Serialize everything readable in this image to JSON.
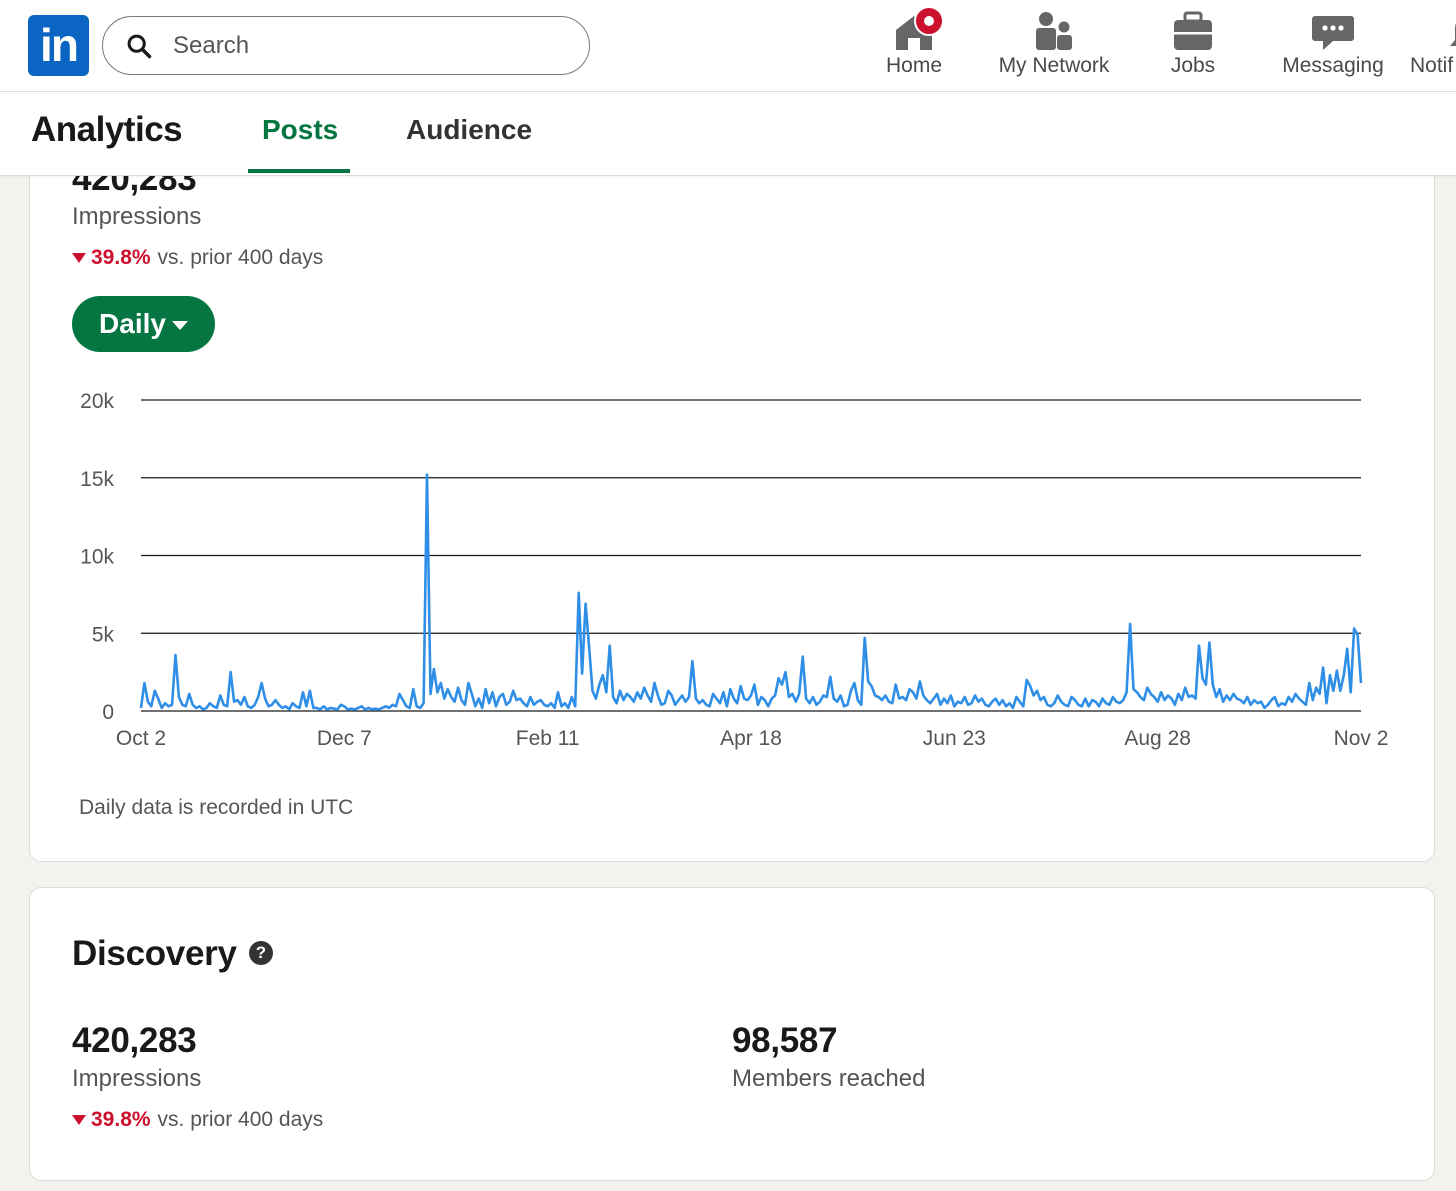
{
  "nav": {
    "search_placeholder": "Search",
    "items": [
      {
        "label": "Home",
        "icon": "home-icon"
      },
      {
        "label": "My Network",
        "icon": "network-icon"
      },
      {
        "label": "Jobs",
        "icon": "briefcase-icon"
      },
      {
        "label": "Messaging",
        "icon": "messaging-icon"
      },
      {
        "label": "Notif",
        "icon": "bell-icon"
      }
    ]
  },
  "subnav": {
    "title": "Analytics",
    "tabs": [
      {
        "label": "Posts",
        "active": true
      },
      {
        "label": "Audience",
        "active": false
      }
    ]
  },
  "impressions_card": {
    "value": "420,283",
    "label": "Impressions",
    "delta_pct": "39.8%",
    "delta_text": "vs. prior 400 days",
    "period_button": "Daily",
    "footnote": "Daily data is recorded in UTC"
  },
  "discovery": {
    "title": "Discovery",
    "help_icon": "question-icon",
    "impressions_value": "420,283",
    "impressions_label": "Impressions",
    "delta_pct": "39.8%",
    "delta_text": "vs. prior 400 days",
    "members_value": "98,587",
    "members_label": "Members reached"
  },
  "colors": {
    "brand_blue": "#0a66c2",
    "green": "#057642",
    "line": "#2f8ee6",
    "negative": "#cb112d"
  },
  "chart_data": {
    "type": "line",
    "x_tick_labels": [
      "Oct 2",
      "Dec 7",
      "Feb 11",
      "Apr 18",
      "Jun 23",
      "Aug 28",
      "Nov 2"
    ],
    "y_tick_labels": [
      "0",
      "5k",
      "10k",
      "15k",
      "20k"
    ],
    "ylim": [
      0,
      20000
    ],
    "grid": true,
    "series": [
      {
        "values": [
          200,
          1800,
          600,
          300,
          1300,
          800,
          200,
          500,
          300,
          400,
          3600,
          900,
          400,
          300,
          1100,
          400,
          200,
          300,
          100,
          200,
          500,
          300,
          200,
          1000,
          400,
          300,
          2500,
          600,
          700,
          400,
          900,
          300,
          200,
          400,
          900,
          1800,
          800,
          300,
          400,
          700,
          400,
          200,
          300,
          100,
          500,
          300,
          200,
          1200,
          300,
          1300,
          200,
          200,
          100,
          300,
          100,
          200,
          150,
          100,
          400,
          300,
          100,
          150,
          100,
          200,
          300,
          100,
          200,
          100,
          150,
          100,
          200,
          300,
          200,
          400,
          300,
          1100,
          700,
          300,
          200,
          1400,
          300,
          200,
          500,
          15200,
          1100,
          2700,
          1200,
          1800,
          800,
          1400,
          900,
          600,
          1500,
          700,
          400,
          1800,
          1100,
          300,
          800,
          200,
          1400,
          500,
          1200,
          300,
          900,
          1100,
          400,
          600,
          1300,
          700,
          800,
          500,
          300,
          900,
          400,
          600,
          700,
          400,
          300,
          500,
          200,
          1200,
          300,
          500,
          200,
          900,
          300,
          7600,
          2400,
          6900,
          4200,
          1300,
          800,
          1700,
          2300,
          1200,
          4200,
          900,
          500,
          1300,
          700,
          1100,
          900,
          600,
          1200,
          800,
          1500,
          1000,
          600,
          1800,
          1000,
          400,
          500,
          1300,
          1000,
          400,
          700,
          1000,
          600,
          900,
          3200,
          800,
          500,
          700,
          400,
          300,
          1100,
          800,
          500,
          1200,
          300,
          1400,
          800,
          500,
          1600,
          800,
          700,
          1000,
          1700,
          400,
          900,
          700,
          300,
          800,
          1000,
          2100,
          1700,
          2500,
          900,
          1100,
          600,
          1100,
          3500,
          800,
          500,
          900,
          400,
          600,
          1000,
          900,
          2200,
          800,
          600,
          1000,
          300,
          400,
          1300,
          1800,
          700,
          400,
          4700,
          1900,
          1600,
          1000,
          900,
          700,
          1000,
          600,
          500,
          1700,
          800,
          900,
          700,
          1400,
          1200,
          800,
          1900,
          1000,
          700,
          500,
          800,
          1100,
          400,
          800,
          500,
          1000,
          300,
          600,
          500,
          900,
          400,
          500,
          1000,
          600,
          800,
          400,
          300,
          600,
          800,
          400,
          700,
          300,
          500,
          200,
          900,
          600,
          300,
          2000,
          1600,
          1000,
          1300,
          700,
          900,
          400,
          300,
          500,
          1000,
          600,
          400,
          300,
          900,
          700,
          400,
          300,
          800,
          300,
          700,
          600,
          300,
          800,
          500,
          400,
          900,
          600,
          500,
          700,
          1200,
          5600,
          1400,
          1200,
          900,
          700,
          1500,
          1100,
          900,
          600,
          1200,
          700,
          1000,
          800,
          400,
          1100,
          700,
          1500,
          900,
          1000,
          800,
          4200,
          2100,
          1700,
          4400,
          1700,
          900,
          1400,
          600,
          1000,
          700,
          1100,
          800,
          700,
          500,
          900,
          400,
          700,
          500,
          600,
          200,
          400,
          700,
          900,
          300,
          500,
          400,
          900,
          600,
          1100,
          800,
          600,
          400,
          1800,
          700,
          1500,
          1100,
          2800,
          500,
          2300,
          1300,
          2600,
          1300,
          2300,
          4000,
          1200,
          5300,
          4900,
          1800
        ]
      }
    ]
  }
}
